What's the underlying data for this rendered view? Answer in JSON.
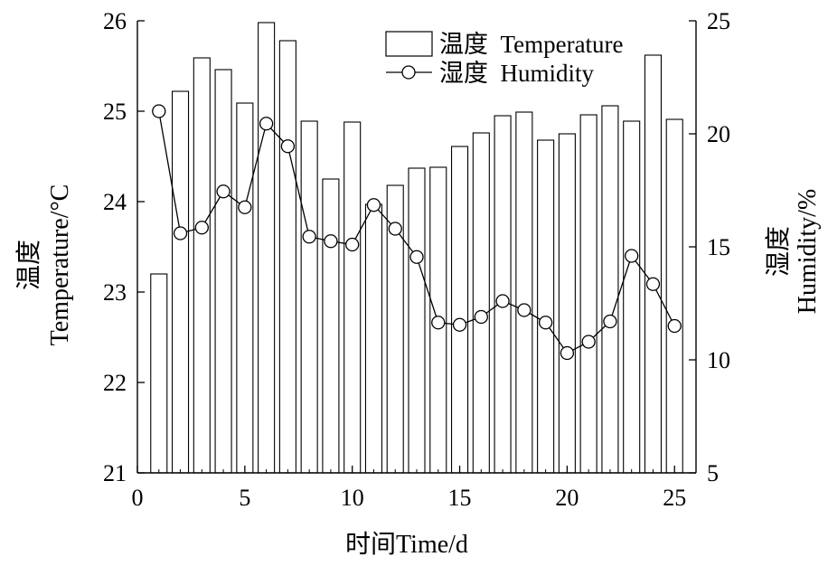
{
  "chart_data": {
    "type": "bar",
    "x": [
      1,
      2,
      3,
      4,
      5,
      6,
      7,
      8,
      9,
      10,
      11,
      12,
      13,
      14,
      15,
      16,
      17,
      18,
      19,
      20,
      21,
      22,
      23,
      24,
      25
    ],
    "xlabel": "时间Time/d",
    "xlim": [
      0,
      26
    ],
    "xticks": [
      0,
      5,
      10,
      15,
      20,
      25
    ],
    "y_left": {
      "label_cn": "温度",
      "label_en": "Temperature/°C",
      "lim": [
        21,
        26
      ],
      "ticks": [
        21,
        22,
        23,
        24,
        25,
        26
      ]
    },
    "y_right": {
      "label_cn": "湿度",
      "label_en": "Humidity/%",
      "lim": [
        5,
        25
      ],
      "ticks": [
        5,
        10,
        15,
        20,
        25
      ]
    },
    "series": [
      {
        "name": "温度  Temperature",
        "kind": "bar",
        "axis": "left",
        "values": [
          23.2,
          25.22,
          25.59,
          25.46,
          25.09,
          25.98,
          25.78,
          24.89,
          24.25,
          24.88,
          23.97,
          24.18,
          24.37,
          24.38,
          24.61,
          24.76,
          24.95,
          24.99,
          24.68,
          24.75,
          24.96,
          25.06,
          24.89,
          25.62,
          24.91
        ]
      },
      {
        "name": "湿度  Humidity",
        "kind": "line",
        "marker": "circle",
        "axis": "right",
        "values": [
          21.0,
          15.6,
          15.85,
          17.45,
          16.75,
          20.45,
          19.45,
          15.45,
          15.25,
          15.1,
          16.85,
          15.8,
          14.55,
          11.65,
          11.55,
          11.9,
          12.6,
          12.2,
          11.65,
          10.3,
          10.8,
          11.7,
          14.6,
          13.35,
          11.5
        ]
      }
    ],
    "legend_placement": "top-right",
    "grid": false
  }
}
